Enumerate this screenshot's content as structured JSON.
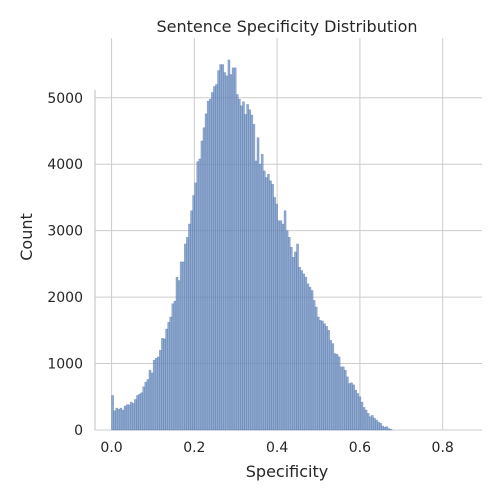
{
  "chart_data": {
    "type": "bar",
    "title": "Sentence Specificity Distribution",
    "xlabel": "Specificity",
    "ylabel": "Count",
    "xlim": [
      -0.04,
      0.895
    ],
    "ylim": [
      0,
      5900
    ],
    "xticks": [
      0.0,
      0.2,
      0.4,
      0.6,
      0.8
    ],
    "xtick_labels": [
      "0.0",
      "0.2",
      "0.4",
      "0.6",
      "0.8"
    ],
    "yticks": [
      0,
      1000,
      2000,
      3000,
      4000,
      5000
    ],
    "ytick_labels": [
      "0",
      "1000",
      "2000",
      "3000",
      "4000",
      "5000"
    ],
    "grid": true,
    "color": "#6c8ebf",
    "bin_start": 0.0,
    "bin_width": 0.00502,
    "values": [
      520,
      290,
      330,
      310,
      330,
      300,
      360,
      380,
      380,
      420,
      400,
      460,
      520,
      540,
      560,
      650,
      720,
      760,
      900,
      860,
      1050,
      1080,
      1100,
      1200,
      1380,
      1370,
      1520,
      1620,
      1700,
      1900,
      1940,
      2300,
      2250,
      2530,
      2530,
      2800,
      2900,
      3100,
      3300,
      3530,
      3720,
      4040,
      4080,
      4350,
      4550,
      4760,
      4950,
      4980,
      5080,
      5170,
      5200,
      5410,
      5500,
      5500,
      5380,
      5330,
      5570,
      5350,
      5450,
      5450,
      5050,
      4980,
      4880,
      4940,
      4750,
      4900,
      4820,
      4740,
      4600,
      4050,
      4400,
      4000,
      4150,
      3900,
      3800,
      3850,
      3750,
      3700,
      3500,
      3400,
      3150,
      3150,
      3100,
      3300,
      3000,
      2900,
      2750,
      2600,
      2680,
      2800,
      2450,
      2400,
      2350,
      2300,
      2200,
      2150,
      2100,
      1950,
      1850,
      1700,
      1650,
      1640,
      1600,
      1560,
      1500,
      1350,
      1300,
      1150,
      1140,
      1100,
      950,
      950,
      900,
      800,
      700,
      710,
      680,
      600,
      550,
      500,
      420,
      340,
      300,
      250,
      200,
      220,
      180,
      150,
      120,
      100,
      60,
      40,
      50,
      20,
      10
    ]
  }
}
